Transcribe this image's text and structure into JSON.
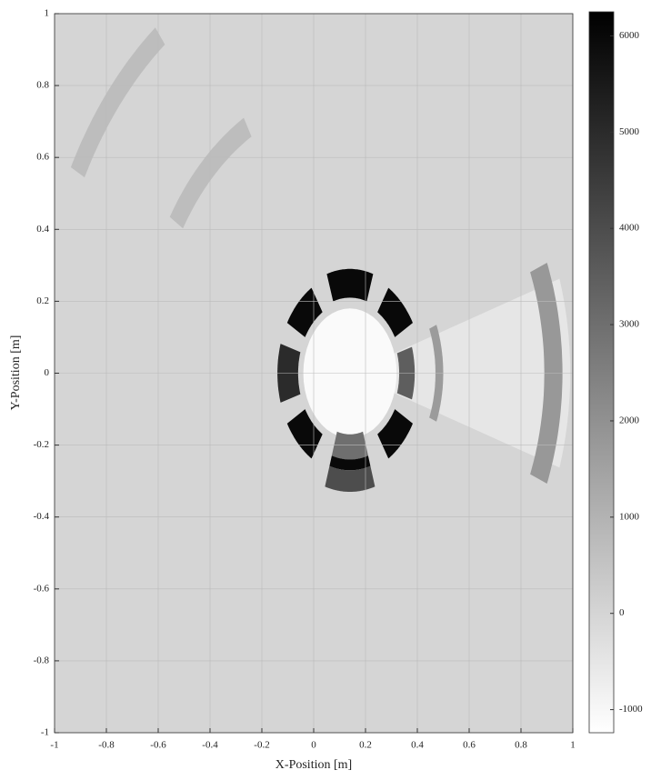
{
  "chart_data": {
    "type": "heatmap",
    "xlabel": "X-Position [m]",
    "ylabel": "Y-Position [m]",
    "xlim": [
      -1,
      1
    ],
    "ylim": [
      -1,
      1
    ],
    "xticks": [
      -1,
      -0.8,
      -0.6,
      -0.4,
      -0.2,
      0,
      0.2,
      0.4,
      0.6,
      0.8,
      1
    ],
    "yticks": [
      -1,
      -0.8,
      -0.6,
      -0.4,
      -0.2,
      0,
      0.2,
      0.4,
      0.6,
      0.8,
      1
    ],
    "grid": true,
    "colormap": "gray-reversed",
    "clim": [
      -1240,
      6250
    ],
    "cticks": [
      -1000,
      0,
      1000,
      2000,
      3000,
      4000,
      5000,
      6000
    ],
    "background": 0,
    "regions": [
      {
        "center": [
          0.14,
          0
        ],
        "r": [
          0,
          0.85
        ],
        "angle": [
          -18,
          18
        ],
        "value": -500
      },
      {
        "center": [
          0.14,
          0
        ],
        "r": [
          0.76,
          0.82
        ],
        "angle": [
          120,
          148
        ],
        "value": 700
      },
      {
        "center": [
          0.14,
          0
        ],
        "r": [
          1.16,
          1.22
        ],
        "angle": [
          128,
          152
        ],
        "value": 700
      },
      {
        "center": [
          0.14,
          0
        ],
        "r": [
          0,
          0.18
        ],
        "angle": [
          0,
          360
        ],
        "value": -1100
      },
      {
        "center": [
          0.14,
          0
        ],
        "r": [
          0.21,
          0.29
        ],
        "angle": [
          72,
          108
        ],
        "value": 6000
      },
      {
        "center": [
          0.14,
          0
        ],
        "r": [
          0.2,
          0.28
        ],
        "angle": [
          122,
          150
        ],
        "value": 6000
      },
      {
        "center": [
          0.14,
          0
        ],
        "r": [
          0.2,
          0.28
        ],
        "angle": [
          163,
          197
        ],
        "value": 5000
      },
      {
        "center": [
          0.14,
          0
        ],
        "r": [
          0.2,
          0.28
        ],
        "angle": [
          210,
          238
        ],
        "value": 6000
      },
      {
        "center": [
          0.14,
          0
        ],
        "r": [
          0.17,
          0.24
        ],
        "angle": [
          253,
          287
        ],
        "value": 3000
      },
      {
        "center": [
          0.14,
          0
        ],
        "r": [
          0.24,
          0.27
        ],
        "angle": [
          253,
          287
        ],
        "value": 6000
      },
      {
        "center": [
          0.14,
          0
        ],
        "r": [
          0.27,
          0.33
        ],
        "angle": [
          253,
          287
        ],
        "value": 4000
      },
      {
        "center": [
          0.14,
          0
        ],
        "r": [
          0.2,
          0.28
        ],
        "angle": [
          302,
          330
        ],
        "value": 6000
      },
      {
        "center": [
          0.14,
          0
        ],
        "r": [
          0.19,
          0.25
        ],
        "angle": [
          -17,
          17
        ],
        "value": 3500
      },
      {
        "center": [
          0.14,
          0
        ],
        "r": [
          0.2,
          0.28
        ],
        "angle": [
          30,
          58
        ],
        "value": 6000
      },
      {
        "center": [
          0.14,
          0
        ],
        "r": [
          0.33,
          0.36
        ],
        "angle": [
          -22,
          22
        ],
        "value": 1700
      },
      {
        "center": [
          0.14,
          0
        ],
        "r": [
          0.75,
          0.82
        ],
        "angle": [
          -22,
          22
        ],
        "value": 1800
      }
    ]
  }
}
